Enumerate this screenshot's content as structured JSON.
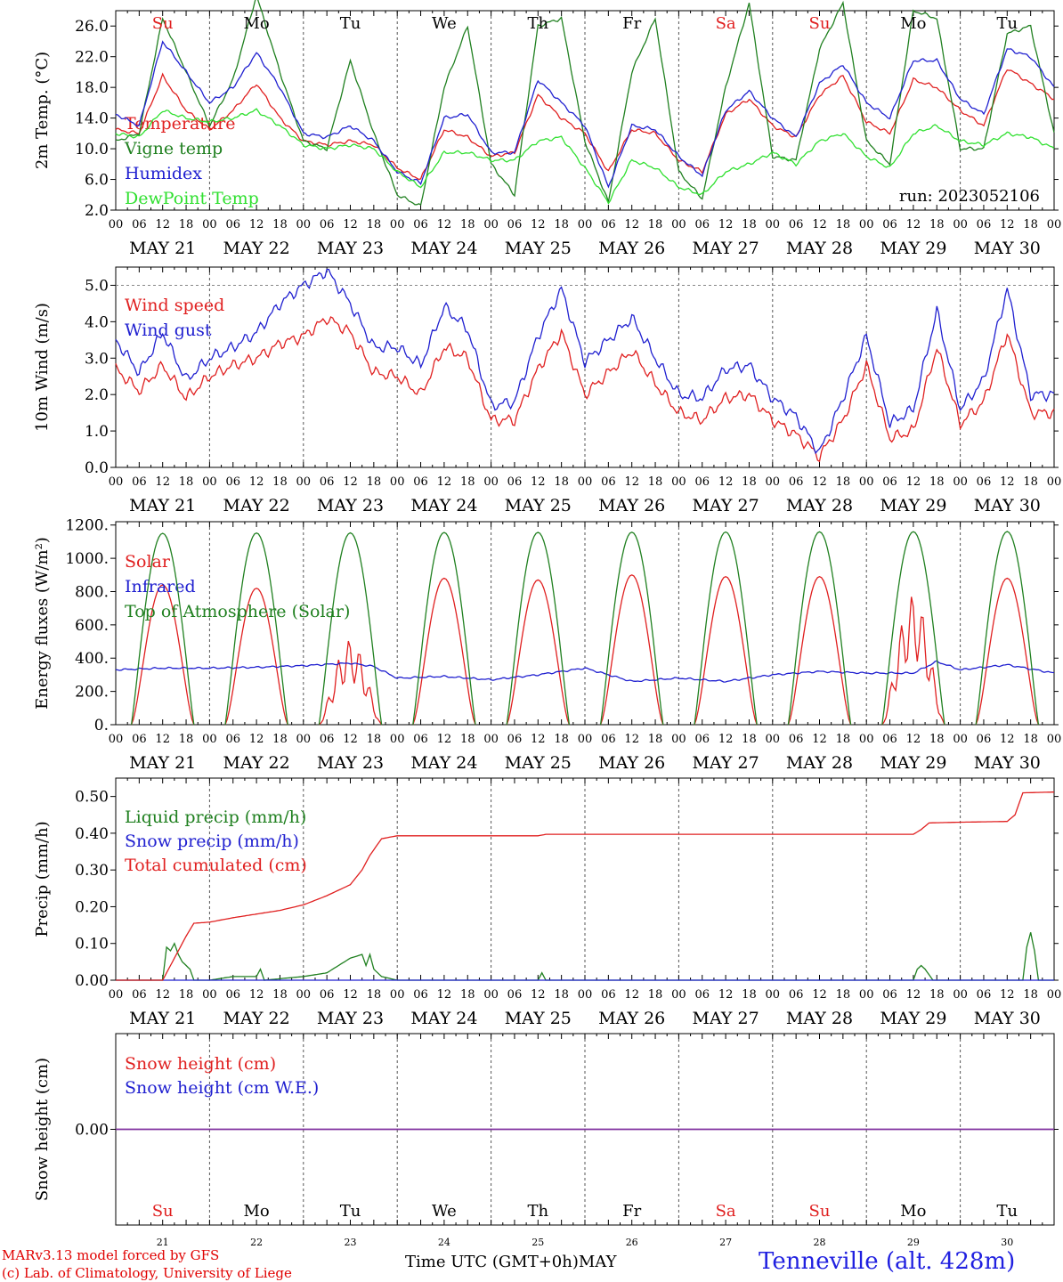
{
  "header": {
    "run_label": "run: 2023052106"
  },
  "day_abbrevs": [
    {
      "label": "Su",
      "color": "#e02020"
    },
    {
      "label": "Mo",
      "color": "#000000"
    },
    {
      "label": "Tu",
      "color": "#000000"
    },
    {
      "label": "We",
      "color": "#000000"
    },
    {
      "label": "Th",
      "color": "#000000"
    },
    {
      "label": "Fr",
      "color": "#000000"
    },
    {
      "label": "Sa",
      "color": "#e02020"
    },
    {
      "label": "Su",
      "color": "#e02020"
    },
    {
      "label": "Mo",
      "color": "#000000"
    },
    {
      "label": "Tu",
      "color": "#000000"
    }
  ],
  "date_labels": [
    "MAY 21",
    "MAY 22",
    "MAY 23",
    "MAY 24",
    "MAY 25",
    "MAY 26",
    "MAY 27",
    "MAY 28",
    "MAY 29",
    "MAY 30"
  ],
  "hour_labels": [
    "00",
    "06",
    "12",
    "18"
  ],
  "hour_end_label": "00",
  "day_numbers": [
    "21",
    "22",
    "23",
    "24",
    "25",
    "26",
    "27",
    "28",
    "29",
    "30"
  ],
  "footer": {
    "credit_line1": "MARv3.13 model forced by GFS",
    "credit_line2": "(c) Lab. of Climatology, University of Liege",
    "time_axis": "Time UTC (GMT+0h)MAY",
    "station": "Tenneville (alt. 428m)"
  },
  "chart_data": [
    {
      "type": "line",
      "ylabel": "2m Temp. (°C)",
      "ylim": [
        2,
        28
      ],
      "yticks": [
        "2.0",
        "6.0",
        "10.0",
        "14.0",
        "18.0",
        "22.0",
        "26.0"
      ],
      "ytick_values": [
        2,
        6,
        10,
        14,
        18,
        22,
        26
      ],
      "x_unit": "hours since 2023-05-21 00 UTC",
      "xlim": [
        0,
        240
      ],
      "series": [
        {
          "name": "Temperature",
          "color": "#e02020",
          "x": [
            0,
            6,
            12,
            18,
            24,
            30,
            36,
            42,
            48,
            54,
            60,
            66,
            72,
            78,
            84,
            90,
            96,
            102,
            108,
            114,
            120,
            126,
            132,
            138,
            144,
            150,
            156,
            162,
            168,
            174,
            180,
            186,
            192,
            198,
            204,
            210,
            216,
            222,
            228,
            234,
            240
          ],
          "y": [
            12.5,
            12,
            19.5,
            15,
            12.5,
            15,
            18.5,
            14,
            11,
            10.5,
            11,
            10.5,
            7.5,
            6,
            12.5,
            11.5,
            9,
            9.5,
            17,
            14,
            12,
            7,
            12.5,
            12,
            8.5,
            7,
            14.5,
            16.5,
            13,
            11.5,
            17,
            19.5,
            13.5,
            12,
            19,
            18,
            15,
            13,
            20.5,
            18.5,
            16.5
          ]
        },
        {
          "name": "Vigne temp",
          "color": "#208020",
          "x": [
            0,
            6,
            12,
            18,
            24,
            30,
            36,
            42,
            48,
            54,
            60,
            66,
            72,
            78,
            84,
            90,
            96,
            102,
            108,
            114,
            120,
            126,
            132,
            138,
            144,
            150,
            156,
            162,
            168,
            174,
            180,
            186,
            192,
            198,
            204,
            210,
            216,
            222,
            228,
            234,
            240
          ],
          "y": [
            11,
            12,
            27,
            20,
            13,
            19,
            30,
            20,
            11,
            10,
            21.5,
            12,
            4,
            2.5,
            18,
            26,
            8,
            4,
            26,
            27,
            11,
            3,
            20,
            27,
            7,
            3.5,
            18,
            29,
            9,
            8.5,
            23,
            29,
            11,
            8,
            28,
            27,
            10,
            10,
            25,
            26,
            12
          ]
        },
        {
          "name": "Humidex",
          "color": "#2020d0",
          "x": [
            0,
            6,
            12,
            18,
            24,
            30,
            36,
            42,
            48,
            54,
            60,
            66,
            72,
            78,
            84,
            90,
            96,
            102,
            108,
            114,
            120,
            126,
            132,
            138,
            144,
            150,
            156,
            162,
            168,
            174,
            180,
            186,
            192,
            198,
            204,
            210,
            216,
            222,
            228,
            234,
            240
          ],
          "y": [
            14.5,
            13,
            24,
            20,
            16,
            18,
            22.5,
            18,
            12,
            11.5,
            13,
            11,
            7,
            5.5,
            14,
            14.5,
            9.5,
            9.5,
            19,
            16,
            13,
            5,
            13,
            12.5,
            9,
            6.5,
            15,
            17.5,
            14,
            11.5,
            18.5,
            21,
            16,
            14,
            21.5,
            21.5,
            16.5,
            14.5,
            23,
            22,
            18
          ]
        },
        {
          "name": "DewPoint Temp",
          "color": "#30e030",
          "x": [
            0,
            6,
            12,
            18,
            24,
            30,
            36,
            42,
            48,
            54,
            60,
            66,
            72,
            78,
            84,
            90,
            96,
            102,
            108,
            114,
            120,
            126,
            132,
            138,
            144,
            150,
            156,
            162,
            168,
            174,
            180,
            186,
            192,
            198,
            204,
            210,
            216,
            222,
            228,
            234,
            240
          ],
          "y": [
            12,
            11.5,
            15,
            14,
            13.5,
            14,
            15,
            13,
            10.5,
            10,
            10.5,
            10,
            7,
            5,
            9.5,
            9.5,
            8.5,
            8.5,
            11,
            11.5,
            7.5,
            3,
            8.5,
            7.5,
            5,
            4,
            7,
            8,
            9.5,
            8,
            11,
            12,
            9,
            7.5,
            12,
            13,
            11,
            10.5,
            12,
            11.5,
            10
          ]
        }
      ]
    },
    {
      "type": "line",
      "ylabel": "10m Wind (m/s)",
      "ylim": [
        0,
        5.5
      ],
      "yticks": [
        "0.0",
        "1.0",
        "2.0",
        "3.0",
        "4.0",
        "5.0"
      ],
      "ytick_values": [
        0,
        1,
        2,
        3,
        4,
        5
      ],
      "x_unit": "hours since 2023-05-21 00 UTC",
      "xlim": [
        0,
        240
      ],
      "series": [
        {
          "name": "Wind speed",
          "color": "#e02020",
          "x": [
            0,
            6,
            12,
            18,
            24,
            30,
            36,
            42,
            48,
            54,
            60,
            66,
            72,
            78,
            84,
            90,
            96,
            102,
            108,
            114,
            120,
            126,
            132,
            138,
            144,
            150,
            156,
            162,
            168,
            174,
            180,
            186,
            192,
            198,
            204,
            210,
            216,
            222,
            228,
            234,
            240
          ],
          "y": [
            2.7,
            2.1,
            2.8,
            1.9,
            2.5,
            2.8,
            3.0,
            3.4,
            3.6,
            4.1,
            3.7,
            2.6,
            2.5,
            2.0,
            3.3,
            3.0,
            1.3,
            1.3,
            2.7,
            3.7,
            2.0,
            2.6,
            3.2,
            2.3,
            1.5,
            1.3,
            1.9,
            2.0,
            1.3,
            0.9,
            0.3,
            1.3,
            2.8,
            0.8,
            1.0,
            3.3,
            1.2,
            1.8,
            3.7,
            1.5,
            1.5
          ]
        },
        {
          "name": "Wind gust",
          "color": "#2020d0",
          "x": [
            0,
            6,
            12,
            18,
            24,
            30,
            36,
            42,
            48,
            54,
            60,
            66,
            72,
            78,
            84,
            90,
            96,
            102,
            108,
            114,
            120,
            126,
            132,
            138,
            144,
            150,
            156,
            162,
            168,
            174,
            180,
            186,
            192,
            198,
            204,
            210,
            216,
            222,
            228,
            234,
            240
          ],
          "y": [
            3.5,
            2.6,
            3.7,
            2.4,
            3.0,
            3.3,
            3.7,
            4.5,
            5.0,
            5.4,
            4.5,
            3.3,
            3.3,
            2.8,
            4.4,
            3.8,
            1.7,
            1.8,
            3.6,
            4.9,
            2.9,
            3.5,
            4.1,
            3.0,
            2.0,
            1.9,
            2.7,
            2.8,
            1.9,
            1.4,
            0.4,
            1.9,
            3.6,
            1.2,
            1.6,
            4.3,
            1.6,
            2.4,
            4.9,
            2.0,
            2.0
          ]
        }
      ]
    },
    {
      "type": "line",
      "ylabel": "Energy fluxes (W/m²)",
      "ylim": [
        0,
        1220
      ],
      "yticks": [
        "0.",
        "200.",
        "400.",
        "600.",
        "800.",
        "1000.",
        "1200."
      ],
      "ytick_values": [
        0,
        200,
        400,
        600,
        800,
        1000,
        1200
      ],
      "x_unit": "hours since 2023-05-21 00 UTC",
      "xlim": [
        0,
        240
      ],
      "daily_peak_hour": 12,
      "daylight_hours": [
        4,
        20
      ],
      "series": [
        {
          "name": "Solar",
          "color": "#e02020",
          "daily_peaks": [
            840,
            820,
            510,
            880,
            870,
            900,
            890,
            890,
            780,
            880
          ]
        },
        {
          "name": "Infrared",
          "color": "#2020d0",
          "x": [
            0,
            12,
            24,
            36,
            48,
            60,
            66,
            72,
            84,
            96,
            108,
            120,
            132,
            144,
            156,
            168,
            180,
            192,
            204,
            210,
            216,
            228,
            240
          ],
          "y": [
            330,
            340,
            340,
            345,
            355,
            370,
            350,
            280,
            290,
            270,
            300,
            340,
            260,
            280,
            260,
            300,
            320,
            310,
            310,
            380,
            330,
            360,
            310
          ]
        },
        {
          "name": "Top of Atmosphere (Solar)",
          "color": "#208020",
          "daily_peaks": [
            1150,
            1152,
            1153,
            1155,
            1156,
            1157,
            1158,
            1159,
            1160,
            1161
          ]
        }
      ]
    },
    {
      "type": "line",
      "ylabel": "Precip (mm/h)",
      "ylim": [
        0,
        0.55
      ],
      "yticks": [
        "0.00",
        "0.10",
        "0.20",
        "0.30",
        "0.40",
        "0.50"
      ],
      "ytick_values": [
        0,
        0.1,
        0.2,
        0.3,
        0.4,
        0.5
      ],
      "x_unit": "hours since 2023-05-21 00 UTC",
      "xlim": [
        0,
        240
      ],
      "series": [
        {
          "name": "Liquid precip (mm/h)",
          "color": "#208020",
          "x": [
            0,
            12,
            13,
            14,
            15,
            16,
            17,
            18,
            19,
            20,
            24,
            30,
            36,
            37,
            38,
            48,
            54,
            60,
            63,
            64,
            65,
            66,
            68,
            72,
            108,
            109,
            110,
            204,
            205,
            206,
            207,
            209,
            232,
            233,
            234,
            235,
            236,
            240
          ],
          "y": [
            0,
            0,
            0.09,
            0.08,
            0.1,
            0.07,
            0.05,
            0.04,
            0.03,
            0,
            0,
            0.01,
            0.01,
            0.03,
            0,
            0.01,
            0.02,
            0.06,
            0.07,
            0.04,
            0.07,
            0.03,
            0.01,
            0,
            0,
            0.02,
            0,
            0,
            0.03,
            0.04,
            0.03,
            0,
            0,
            0.09,
            0.13,
            0.08,
            0,
            0
          ]
        },
        {
          "name": "Snow precip (mm/h)",
          "color": "#2020d0",
          "x": [
            0,
            240
          ],
          "y": [
            0,
            0
          ]
        },
        {
          "name": "Total cumulated (cm)",
          "color": "#e02020",
          "x": [
            0,
            12,
            14,
            16,
            18,
            20,
            24,
            30,
            36,
            42,
            48,
            54,
            60,
            63,
            65,
            68,
            72,
            108,
            110,
            204,
            206,
            208,
            216,
            228,
            230,
            232,
            240
          ],
          "y": [
            0,
            0,
            0.04,
            0.08,
            0.12,
            0.155,
            0.158,
            0.17,
            0.18,
            0.19,
            0.205,
            0.23,
            0.26,
            0.3,
            0.34,
            0.385,
            0.393,
            0.393,
            0.397,
            0.397,
            0.41,
            0.428,
            0.43,
            0.432,
            0.45,
            0.51,
            0.512
          ]
        }
      ]
    },
    {
      "type": "line",
      "ylabel": "Snow height (cm)",
      "yticks": [
        "0.00"
      ],
      "ytick_values": [
        0
      ],
      "ylim": [
        -1,
        1
      ],
      "x_unit": "hours since 2023-05-21 00 UTC",
      "xlim": [
        0,
        240
      ],
      "series": [
        {
          "name": "Snow height (cm)",
          "color": "#e02020",
          "x": [
            0,
            240
          ],
          "y": [
            0,
            0
          ]
        },
        {
          "name": "Snow height (cm W.E.)",
          "color": "#2020d0",
          "x": [
            0,
            240
          ],
          "y": [
            0,
            0
          ]
        }
      ]
    }
  ]
}
